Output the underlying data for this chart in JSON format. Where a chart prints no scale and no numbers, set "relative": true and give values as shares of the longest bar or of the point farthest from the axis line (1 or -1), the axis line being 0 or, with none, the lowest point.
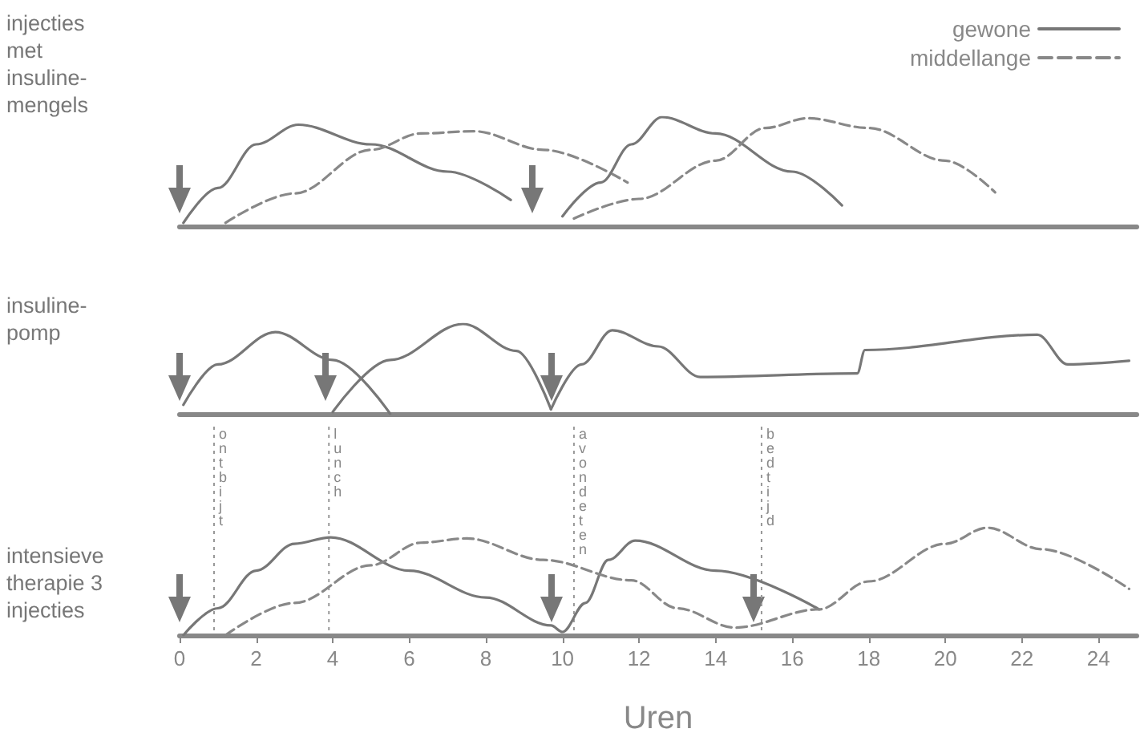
{
  "chart_data": [
    {
      "type": "line",
      "ylabel": "injecties met insuline-mengels",
      "relative": true,
      "xlim": [
        0,
        25
      ],
      "tick_labels": false,
      "legend": "top right",
      "series": [
        {
          "name": "gewone",
          "color": "#777777",
          "line_style": "solid",
          "x": [
            0.1,
            1,
            2,
            3.1,
            5,
            7,
            8.65
          ],
          "values": [
            0.03,
            0.35,
            0.75,
            0.93,
            0.75,
            0.5,
            0.24
          ]
        },
        {
          "name": "middellange",
          "color": "#888888",
          "line_style": "dashed",
          "x": [
            1.2,
            3,
            5,
            6.3,
            7.7,
            9.5,
            11.7
          ],
          "values": [
            0.03,
            0.3,
            0.7,
            0.85,
            0.87,
            0.7,
            0.4
          ]
        },
        {
          "color": "#777777",
          "line_style": "solid",
          "x": [
            10,
            11,
            11.8,
            12.6,
            14,
            16,
            17.3
          ],
          "values": [
            0.09,
            0.4,
            0.75,
            1,
            0.85,
            0.5,
            0.19
          ]
        },
        {
          "color": "#888888",
          "line_style": "dashed",
          "x": [
            10.3,
            12,
            14,
            15.3,
            16.4,
            18,
            20,
            21.3
          ],
          "values": [
            0.07,
            0.25,
            0.6,
            0.9,
            0.99,
            0.9,
            0.6,
            0.31
          ]
        }
      ]
    },
    {
      "type": "line",
      "ylabel": "insuline-pomp",
      "relative": true,
      "xlim": [
        0,
        25
      ],
      "tick_labels": false,
      "series": [
        {
          "color": "#777777",
          "line_style": "solid",
          "x": [
            0.1,
            1,
            2.5,
            4,
            5.5
          ],
          "values": [
            0.1,
            0.55,
            0.91,
            0.6,
            0
          ]
        },
        {
          "color": "#777777",
          "line_style": "solid",
          "x": [
            4,
            5.5,
            7.4,
            8.8,
            9.7
          ],
          "values": [
            0.02,
            0.6,
            1,
            0.7,
            0.05
          ]
        },
        {
          "color": "#777777",
          "line_style": "solid",
          "x": [
            9.7,
            10.5,
            11.3,
            12.5,
            13.6,
            17.7,
            17.9,
            22.4,
            23.2,
            24.8
          ],
          "values": [
            0.05,
            0.55,
            0.93,
            0.75,
            0.41,
            0.45,
            0.71,
            0.88,
            0.55,
            0.59
          ]
        }
      ]
    },
    {
      "type": "line",
      "ylabel": "intensieve therapie 3 injecties",
      "xlabel": "Uren",
      "relative": true,
      "xlim": [
        0,
        25
      ],
      "xticks": [
        0,
        2,
        4,
        6,
        8,
        10,
        12,
        14,
        16,
        18,
        20,
        22,
        24
      ],
      "tick_labels": "x",
      "ref_lines": [
        {
          "axis": "x",
          "value": 0.9,
          "label": "ontbijt",
          "line_style": "dotted"
        },
        {
          "axis": "x",
          "value": 3.9,
          "label": "lunch",
          "line_style": "dotted"
        },
        {
          "axis": "x",
          "value": 10.3,
          "label": "avondeten",
          "line_style": "dotted"
        },
        {
          "axis": "x",
          "value": 15.2,
          "label": "bedtijd",
          "line_style": "dotted"
        }
      ],
      "series": [
        {
          "color": "#777777",
          "line_style": "solid",
          "x": [
            0.1,
            1,
            2,
            3,
            3.95,
            6,
            8,
            9.7,
            10,
            10.6,
            11.2,
            11.9,
            14,
            16.7
          ],
          "values": [
            0,
            0.25,
            0.6,
            0.85,
            0.91,
            0.6,
            0.35,
            0.09,
            0.03,
            0.3,
            0.7,
            0.88,
            0.6,
            0.24
          ]
        },
        {
          "color": "#888888",
          "line_style": "dashed",
          "x": [
            1.2,
            3,
            5,
            6.3,
            7.5,
            9.5,
            11.8,
            13,
            14.5,
            16.7,
            18,
            20,
            21.1,
            22.5,
            24.8
          ],
          "values": [
            0,
            0.3,
            0.65,
            0.86,
            0.9,
            0.7,
            0.51,
            0.25,
            0.07,
            0.24,
            0.5,
            0.85,
            1,
            0.8,
            0.43
          ]
        }
      ]
    }
  ]
}
